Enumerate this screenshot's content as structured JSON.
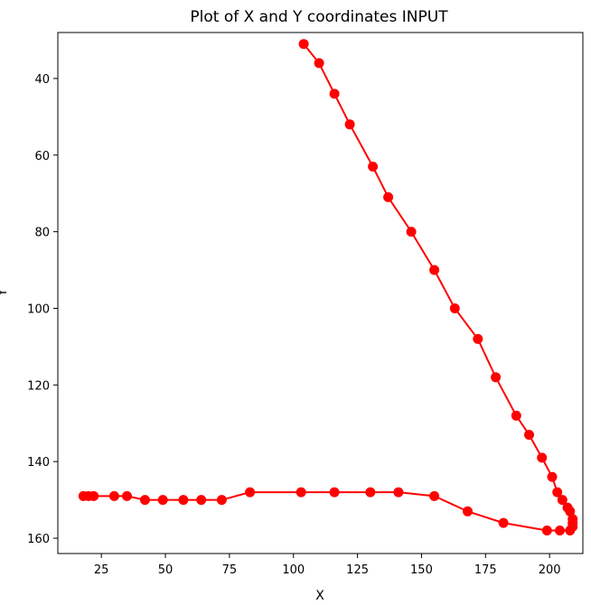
{
  "chart_data": {
    "type": "line",
    "title": "Plot of X and Y coordinates INPUT",
    "xlabel": "X",
    "ylabel": "Y",
    "y_inverted": true,
    "xlim": [
      8,
      213
    ],
    "ylim": [
      28,
      164
    ],
    "grid": false,
    "x_ticks": [
      25,
      50,
      75,
      100,
      125,
      150,
      175,
      200
    ],
    "y_ticks": [
      40,
      60,
      80,
      100,
      120,
      140,
      160
    ],
    "x_tick_labels": [
      "25",
      "50",
      "75",
      "100",
      "125",
      "150",
      "175",
      "200"
    ],
    "y_tick_labels": [
      "40",
      "60",
      "80",
      "100",
      "120",
      "140",
      "160"
    ],
    "line_color": "#ff0000",
    "marker": "circle",
    "series": [
      {
        "x": [
          104,
          110,
          116,
          122,
          131,
          137,
          146,
          155,
          163,
          172,
          179,
          187,
          192,
          197,
          201,
          203,
          205,
          207,
          208,
          209,
          209,
          209,
          208,
          204,
          199,
          182,
          168,
          155,
          141,
          130,
          116,
          103,
          83,
          72,
          64,
          57,
          49,
          42,
          35,
          30,
          22,
          20,
          18
        ],
        "y": [
          31,
          36,
          44,
          52,
          63,
          71,
          80,
          90,
          100,
          108,
          118,
          128,
          133,
          139,
          144,
          148,
          150,
          152,
          153,
          155,
          156,
          157,
          158,
          158,
          158,
          156,
          153,
          149,
          148,
          148,
          148,
          148,
          148,
          150,
          150,
          150,
          150,
          150,
          149,
          149,
          149,
          149,
          149
        ]
      }
    ]
  }
}
